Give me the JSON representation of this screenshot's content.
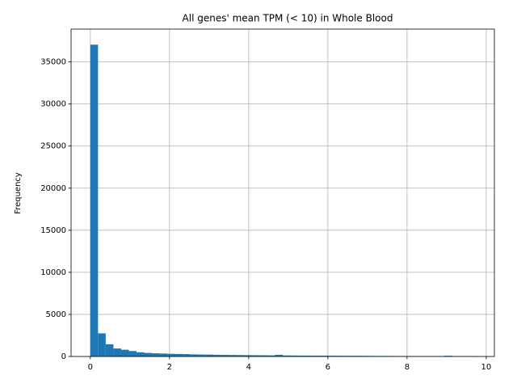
{
  "chart_data": {
    "type": "histogram",
    "title": "All genes' mean TPM (< 10) in Whole Blood",
    "ylabel": "Frequency",
    "bins": [
      0,
      0.1944,
      0.3888,
      0.5832,
      0.7776,
      0.972,
      1.1664,
      1.3608,
      1.5552,
      1.7496,
      1.944,
      2.1384,
      2.3328,
      2.5272,
      2.7216,
      2.916,
      3.1104,
      3.3048,
      3.4992,
      3.6936,
      3.888,
      4.0824,
      4.2768,
      4.4712,
      4.6656,
      4.86,
      5.0544,
      5.2488,
      5.4432,
      5.6376,
      5.832,
      6.0264,
      6.2208,
      6.4152,
      6.6096,
      6.804,
      6.9984,
      7.1928,
      7.3872,
      7.5816,
      7.776,
      7.9704,
      8.1648,
      8.3592,
      8.5536,
      8.748,
      8.9424,
      9.1368,
      9.3312,
      9.5256,
      9.72
    ],
    "values": [
      37050,
      2750,
      1450,
      950,
      800,
      650,
      500,
      420,
      380,
      350,
      320,
      300,
      280,
      250,
      230,
      220,
      200,
      190,
      180,
      170,
      160,
      150,
      140,
      130,
      200,
      120,
      110,
      100,
      100,
      90,
      90,
      85,
      80,
      75,
      75,
      70,
      65,
      60,
      60,
      55,
      50,
      50,
      45,
      45,
      40,
      40,
      80,
      35,
      30,
      30
    ],
    "color": "#1f77b4",
    "xlim": [
      -0.486,
      10.206
    ],
    "ylim": [
      0,
      38900
    ],
    "xticks": [
      0,
      2,
      4,
      6,
      8,
      10
    ],
    "yticks": [
      0,
      5000,
      10000,
      15000,
      20000,
      25000,
      30000,
      35000
    ],
    "grid": true
  }
}
